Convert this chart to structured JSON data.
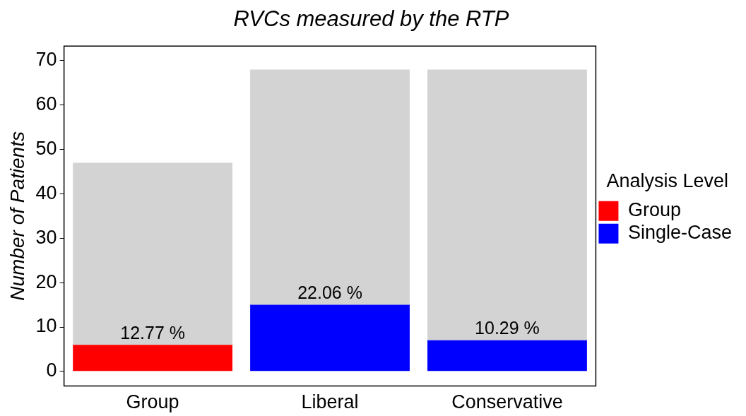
{
  "chart_data": {
    "type": "bar",
    "title": "RVCs measured by the RTP",
    "ylabel": "Number of Patients",
    "legend_title": "Analysis Level",
    "categories": [
      "Group",
      "Liberal",
      "Conservative"
    ],
    "stacked": true,
    "series": [
      {
        "name": "Group",
        "color": "#ff0000",
        "values": [
          6,
          null,
          null
        ]
      },
      {
        "name": "Single-Case",
        "color": "#0000ff",
        "values": [
          null,
          15,
          7
        ]
      },
      {
        "color": "#d3d3d3",
        "values": [
          41,
          53,
          61
        ]
      }
    ],
    "annotations": [
      {
        "text": "12.77 %",
        "x": "Group",
        "y": 6
      },
      {
        "text": "22.06 %",
        "x": "Liberal",
        "y": 15
      },
      {
        "text": "10.29 %",
        "x": "Conservative",
        "y": 7
      }
    ],
    "ylim": [
      -3.3,
      73.3
    ],
    "yticks": [
      0,
      10,
      20,
      30,
      40,
      50,
      60,
      70
    ],
    "grid": false,
    "legend": "right"
  }
}
